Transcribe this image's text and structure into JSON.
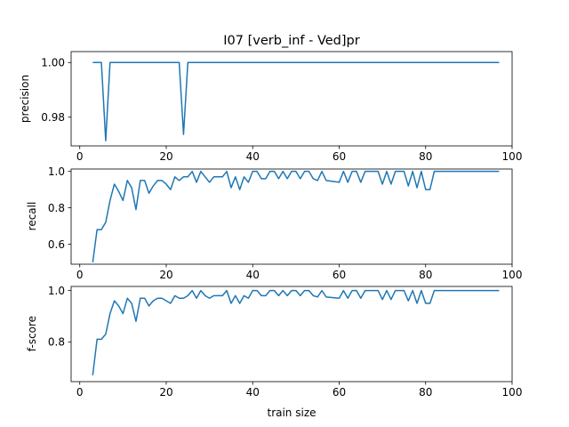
{
  "figure": {
    "title": "I07 [verb_inf - Ved]pr",
    "xlabel": "train size",
    "line_color": "#1f77b4"
  },
  "chart_data": [
    {
      "type": "line",
      "title": "I07 [verb_inf - Ved]pr",
      "xlabel": "",
      "ylabel": "precision",
      "xlim": [
        -2,
        100
      ],
      "ylim": [
        0.9695,
        1.004
      ],
      "xticks": [
        0,
        20,
        40,
        60,
        80,
        100
      ],
      "yticks": [
        0.98,
        1.0
      ],
      "ytick_labels": [
        "0.98",
        "1.00"
      ],
      "grid": false,
      "series": [
        {
          "x": [
            3,
            4,
            5,
            6,
            7,
            8,
            9,
            10,
            11,
            12,
            13,
            14,
            15,
            16,
            17,
            18,
            19,
            20,
            21,
            22,
            23,
            24,
            25,
            26,
            27,
            28,
            29,
            30,
            31,
            32,
            33,
            34,
            35,
            36,
            37,
            38,
            39,
            40,
            41,
            42,
            43,
            44,
            45,
            46,
            47,
            48,
            49,
            50,
            51,
            52,
            53,
            54,
            55,
            56,
            57,
            58,
            59,
            60,
            61,
            62,
            63,
            64,
            65,
            66,
            67,
            68,
            69,
            70,
            71,
            72,
            73,
            74,
            75,
            76,
            77,
            78,
            79,
            80,
            81,
            82,
            83,
            84,
            85,
            86,
            87,
            88,
            89,
            90,
            91,
            92,
            93,
            94,
            95,
            96,
            97
          ],
          "y": [
            1,
            1,
            1,
            0.9714,
            1,
            1,
            1,
            1,
            1,
            1,
            1,
            1,
            1,
            1,
            1,
            1,
            1,
            1,
            1,
            1,
            1,
            0.9737,
            1,
            1,
            1,
            1,
            1,
            1,
            1,
            1,
            1,
            1,
            1,
            1,
            1,
            1,
            1,
            1,
            1,
            1,
            1,
            1,
            1,
            1,
            1,
            1,
            1,
            1,
            1,
            1,
            1,
            1,
            1,
            1,
            1,
            1,
            1,
            1,
            1,
            1,
            1,
            1,
            1,
            1,
            1,
            1,
            1,
            1,
            1,
            1,
            1,
            1,
            1,
            1,
            1,
            1,
            1,
            1,
            1,
            1,
            1,
            1,
            1,
            1,
            1,
            1,
            1,
            1,
            1,
            1,
            1,
            1,
            1,
            1,
            1
          ]
        }
      ]
    },
    {
      "type": "line",
      "title": "",
      "xlabel": "",
      "ylabel": "recall",
      "xlim": [
        -2,
        100
      ],
      "ylim": [
        0.49,
        1.013
      ],
      "xticks": [
        0,
        20,
        40,
        60,
        80,
        100
      ],
      "yticks": [
        0.6,
        0.8,
        1.0
      ],
      "ytick_labels": [
        "0.6",
        "0.8",
        "1.0"
      ],
      "grid": false,
      "series": [
        {
          "x": [
            3,
            4,
            5,
            6,
            7,
            8,
            9,
            10,
            11,
            12,
            13,
            14,
            15,
            16,
            17,
            18,
            19,
            20,
            21,
            22,
            23,
            24,
            25,
            26,
            27,
            28,
            29,
            30,
            31,
            32,
            33,
            34,
            35,
            36,
            37,
            38,
            39,
            40,
            41,
            42,
            43,
            44,
            45,
            46,
            47,
            48,
            49,
            50,
            51,
            52,
            53,
            54,
            55,
            56,
            57,
            60,
            61,
            62,
            63,
            64,
            65,
            66,
            67,
            68,
            69,
            70,
            71,
            72,
            73,
            74,
            75,
            76,
            77,
            78,
            79,
            80,
            81,
            82,
            83,
            84,
            85,
            86,
            87,
            88,
            89,
            90,
            91,
            92,
            93,
            94,
            95,
            96,
            97
          ],
          "y": [
            0.5,
            0.68,
            0.68,
            0.72,
            0.84,
            0.93,
            0.89,
            0.84,
            0.95,
            0.91,
            0.79,
            0.95,
            0.95,
            0.88,
            0.92,
            0.95,
            0.95,
            0.93,
            0.9,
            0.97,
            0.95,
            0.97,
            0.97,
            1.0,
            0.94,
            1.0,
            0.97,
            0.94,
            0.97,
            0.97,
            0.97,
            1.0,
            0.91,
            0.97,
            0.9,
            0.97,
            0.94,
            1.0,
            1.0,
            0.96,
            0.96,
            1.0,
            1.0,
            0.96,
            1.0,
            0.96,
            1.0,
            1.0,
            0.96,
            1.0,
            1.0,
            0.96,
            0.95,
            1.0,
            0.95,
            0.94,
            1.0,
            0.94,
            1.0,
            1.0,
            0.94,
            1.0,
            1.0,
            1.0,
            1.0,
            0.93,
            1.0,
            0.93,
            1.0,
            1.0,
            1.0,
            0.92,
            1.0,
            0.91,
            1.0,
            0.9,
            0.9,
            1.0,
            1.0,
            1.0,
            1.0,
            1.0,
            1.0,
            1.0,
            1.0,
            1.0,
            1.0,
            1.0,
            1.0,
            1.0,
            1.0,
            1.0,
            1.0
          ]
        }
      ]
    },
    {
      "type": "line",
      "title": "",
      "xlabel": "train size",
      "ylabel": "f-score",
      "xlim": [
        -2,
        100
      ],
      "ylim": [
        0.645,
        1.016
      ],
      "xticks": [
        0,
        20,
        40,
        60,
        80,
        100
      ],
      "yticks": [
        0.8,
        1.0
      ],
      "ytick_labels": [
        "0.8",
        "1.0"
      ],
      "grid": false,
      "series": [
        {
          "x": [
            3,
            4,
            5,
            6,
            7,
            8,
            9,
            10,
            11,
            12,
            13,
            14,
            15,
            16,
            17,
            18,
            19,
            20,
            21,
            22,
            23,
            24,
            25,
            26,
            27,
            28,
            29,
            30,
            31,
            32,
            33,
            34,
            35,
            36,
            37,
            38,
            39,
            40,
            41,
            42,
            43,
            44,
            45,
            46,
            47,
            48,
            49,
            50,
            51,
            52,
            53,
            54,
            55,
            56,
            57,
            60,
            61,
            62,
            63,
            64,
            65,
            66,
            67,
            68,
            69,
            70,
            71,
            72,
            73,
            74,
            75,
            76,
            77,
            78,
            79,
            80,
            81,
            82,
            83,
            84,
            85,
            86,
            87,
            88,
            89,
            90,
            91,
            92,
            93,
            94,
            95,
            96,
            97
          ],
          "y": [
            0.67,
            0.81,
            0.81,
            0.83,
            0.91,
            0.96,
            0.94,
            0.91,
            0.97,
            0.95,
            0.88,
            0.97,
            0.97,
            0.94,
            0.96,
            0.97,
            0.97,
            0.96,
            0.95,
            0.98,
            0.97,
            0.97,
            0.98,
            1.0,
            0.97,
            1.0,
            0.98,
            0.97,
            0.98,
            0.98,
            0.98,
            1.0,
            0.95,
            0.98,
            0.95,
            0.98,
            0.97,
            1.0,
            1.0,
            0.98,
            0.98,
            1.0,
            1.0,
            0.98,
            1.0,
            0.98,
            1.0,
            1.0,
            0.98,
            1.0,
            1.0,
            0.98,
            0.975,
            1.0,
            0.975,
            0.97,
            1.0,
            0.97,
            1.0,
            1.0,
            0.97,
            1.0,
            1.0,
            1.0,
            1.0,
            0.965,
            1.0,
            0.965,
            1.0,
            1.0,
            1.0,
            0.96,
            1.0,
            0.95,
            1.0,
            0.95,
            0.95,
            1.0,
            1.0,
            1.0,
            1.0,
            1.0,
            1.0,
            1.0,
            1.0,
            1.0,
            1.0,
            1.0,
            1.0,
            1.0,
            1.0,
            1.0,
            1.0
          ]
        }
      ]
    }
  ]
}
